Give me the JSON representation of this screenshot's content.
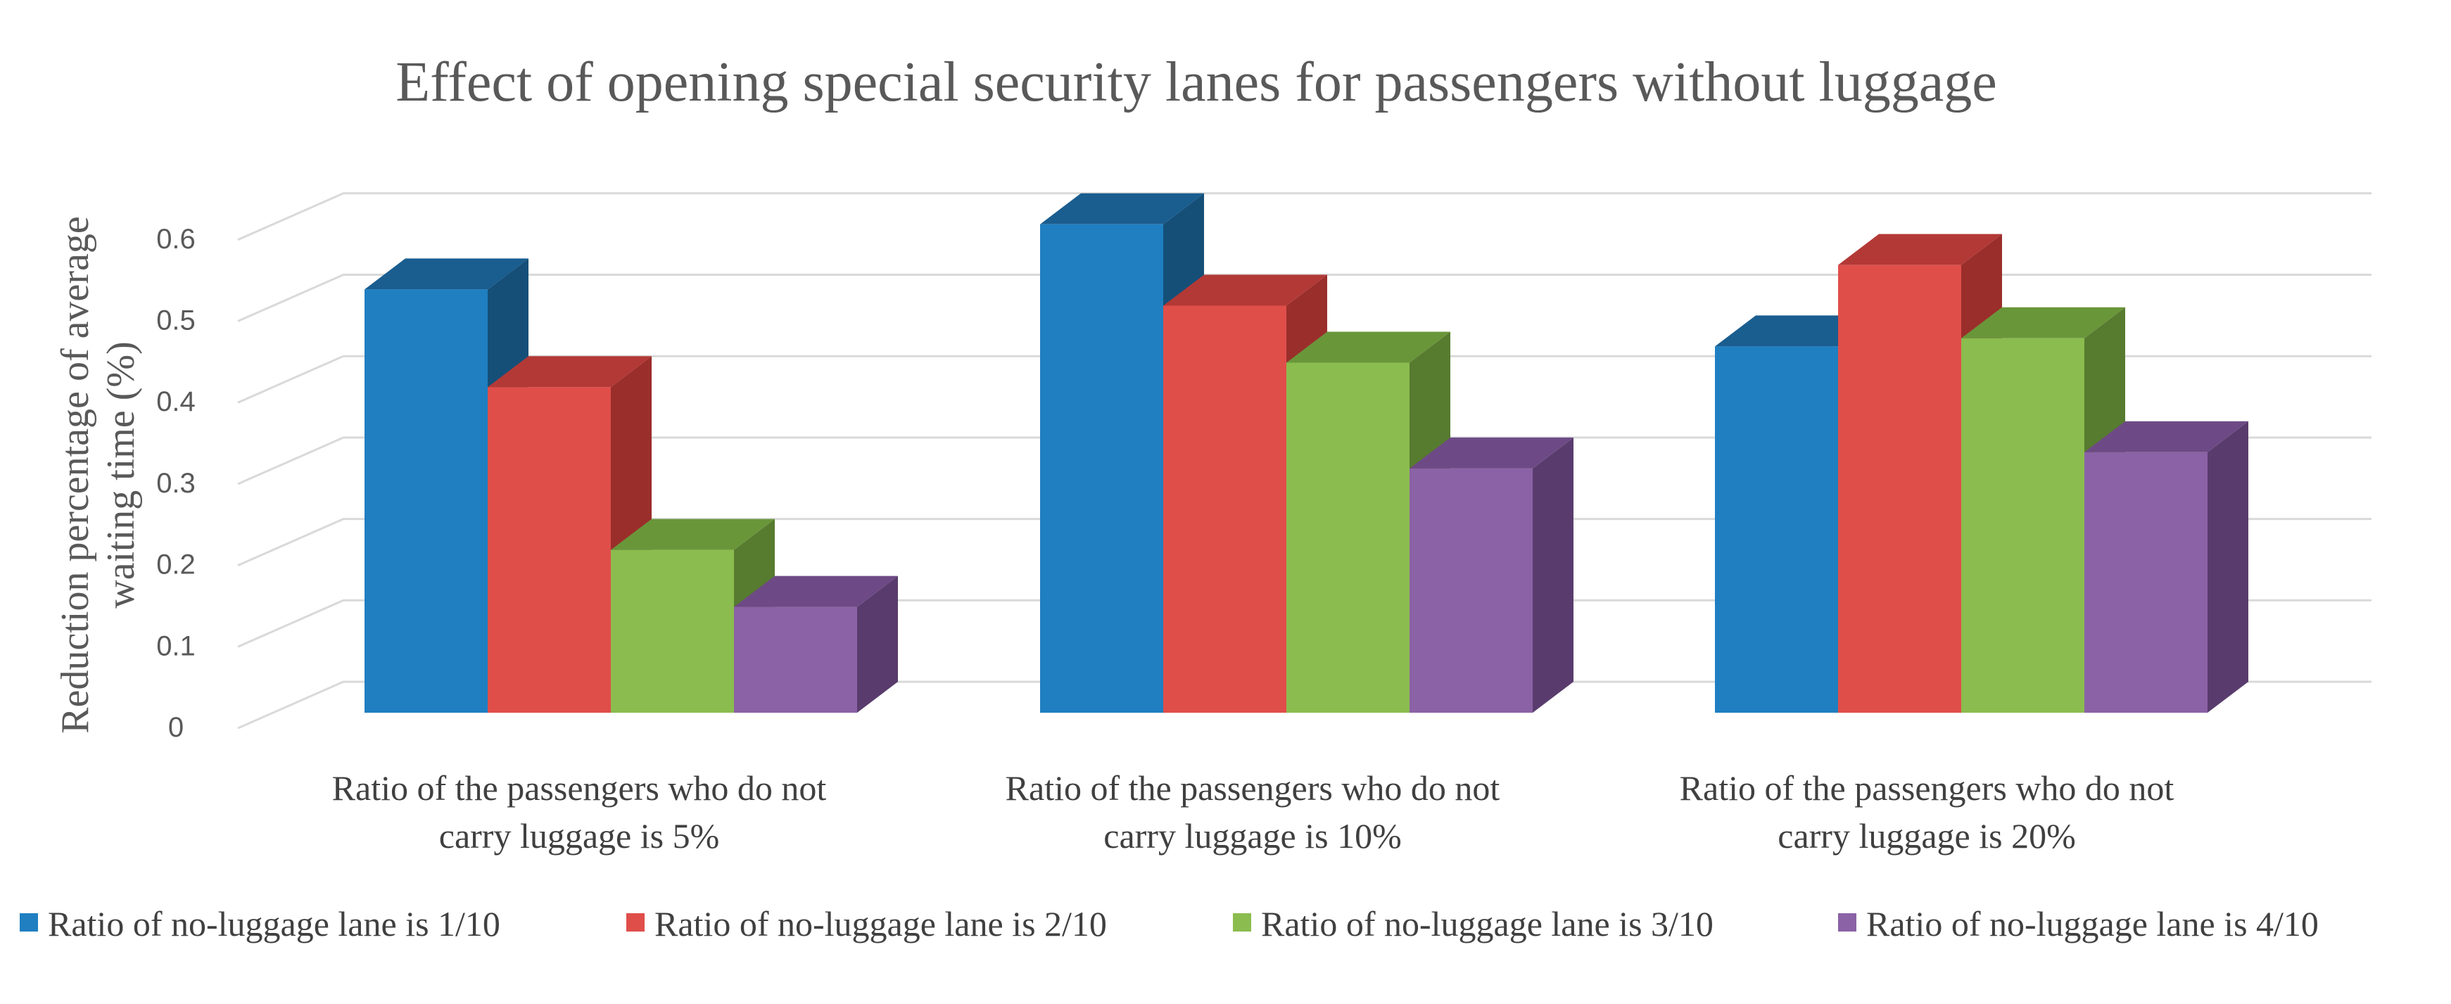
{
  "chart_data": {
    "type": "bar",
    "style": "3d-clustered-column",
    "title": "Effect of opening special security lanes for passengers without luggage",
    "xlabel": "",
    "ylabel_lines": [
      "Reduction percentage of  average",
      "waiting time (%)"
    ],
    "ylim": [
      0,
      0.6
    ],
    "yticks": [
      "0",
      "0.1",
      "0.2",
      "0.3",
      "0.4",
      "0.5",
      "0.6"
    ],
    "grid": true,
    "legend_position": "bottom",
    "categories": [
      [
        "Ratio of the passengers who do not",
        "carry luggage is 5%"
      ],
      [
        "Ratio of the passengers who do not",
        "carry luggage is 10%"
      ],
      [
        "Ratio of the passengers who do not",
        "carry luggage is 20%"
      ]
    ],
    "series": [
      {
        "name": "Ratio of no-luggage lane is 1/10",
        "color": "#1f7fc1",
        "top": "#1a5d8f",
        "side": "#154f78",
        "values": [
          0.52,
          0.6,
          0.45
        ]
      },
      {
        "name": "Ratio of no-luggage lane is 2/10",
        "color": "#e04e4a",
        "top": "#b33936",
        "side": "#9a2e2b",
        "values": [
          0.4,
          0.5,
          0.55
        ]
      },
      {
        "name": "Ratio of no-luggage lane is 3/10",
        "color": "#8bbc4f",
        "top": "#6a963a",
        "side": "#577b2f",
        "values": [
          0.2,
          0.43,
          0.46
        ]
      },
      {
        "name": "Ratio of no-luggage lane is 4/10",
        "color": "#8b62a6",
        "top": "#6d4a85",
        "side": "#593c6d",
        "values": [
          0.13,
          0.3,
          0.32
        ]
      }
    ]
  }
}
